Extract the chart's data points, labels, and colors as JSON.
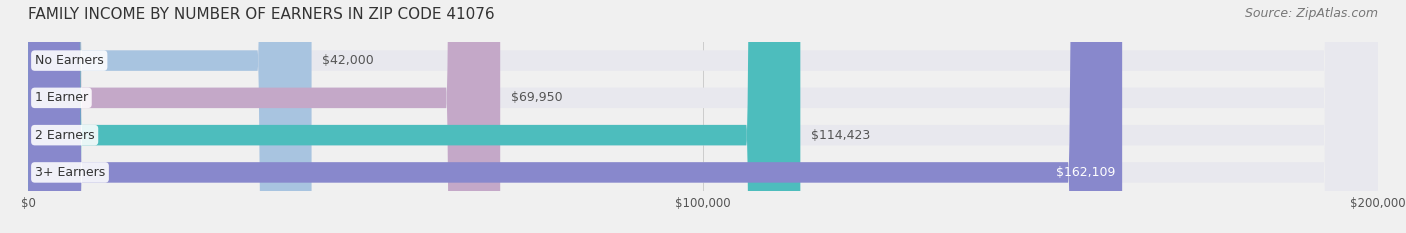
{
  "title": "FAMILY INCOME BY NUMBER OF EARNERS IN ZIP CODE 41076",
  "source": "Source: ZipAtlas.com",
  "categories": [
    "No Earners",
    "1 Earner",
    "2 Earners",
    "3+ Earners"
  ],
  "values": [
    42000,
    69950,
    114423,
    162109
  ],
  "bar_colors": [
    "#a8c4e0",
    "#c4a8c8",
    "#4dbdbd",
    "#8888cc"
  ],
  "bar_labels": [
    "$42,000",
    "$69,950",
    "$114,423",
    "$162,109"
  ],
  "xlim": [
    0,
    200000
  ],
  "xticks": [
    0,
    100000,
    200000
  ],
  "xtick_labels": [
    "$0",
    "$100,000",
    "$200,000"
  ],
  "background_color": "#f0f0f0",
  "bar_background_color": "#e8e8ee",
  "title_fontsize": 11,
  "source_fontsize": 9,
  "label_fontsize": 9,
  "category_fontsize": 9,
  "label_inside_threshold": 0.75
}
